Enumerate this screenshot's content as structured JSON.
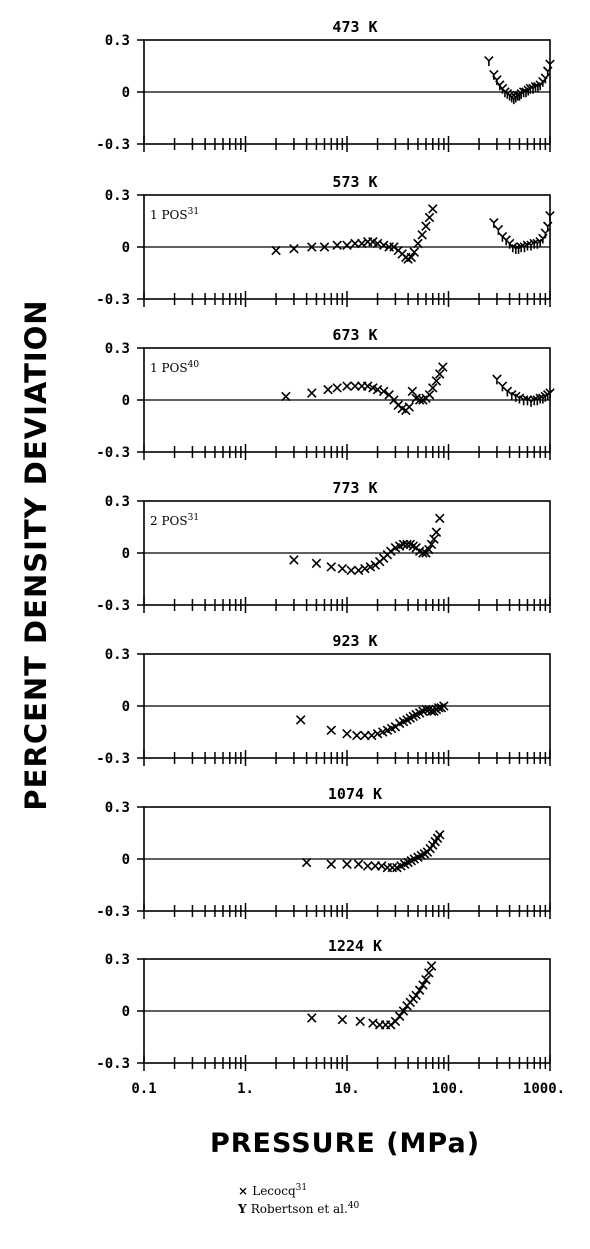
{
  "chart_data": {
    "type": "scatter",
    "ylabel": "PERCENT DENSITY DEVIATION",
    "xlabel": "PRESSURE (MPa)",
    "xscale": "log",
    "xlim": [
      0.1,
      1000
    ],
    "ylim": [
      -0.3,
      0.3
    ],
    "x_tick_labels": [
      "0.1",
      "1.",
      "10.",
      "100.",
      "1000."
    ],
    "y_tick_labels": [
      "0.3",
      "0",
      "-0.3"
    ],
    "legend": [
      {
        "marker": "×",
        "label": "Lecocq",
        "ref": "31"
      },
      {
        "marker": "Y",
        "label": "Robertson et al.",
        "ref": "40"
      }
    ],
    "panels": [
      {
        "title": "473 K",
        "note": null,
        "series": [
          {
            "name": "Lecocq",
            "marker": "x",
            "x": [],
            "y": []
          },
          {
            "name": "Robertson et al.",
            "marker": "y",
            "x": [
              250,
              280,
              300,
              320,
              340,
              360,
              380,
              400,
              420,
              440,
              460,
              480,
              500,
              520,
              550,
              580,
              610,
              640,
              680,
              720,
              760,
              800,
              850,
              900,
              950,
              1000
            ],
            "y": [
              0.18,
              0.1,
              0.07,
              0.04,
              0.02,
              0.0,
              -0.01,
              -0.02,
              -0.03,
              -0.04,
              -0.03,
              -0.02,
              -0.02,
              -0.01,
              0.0,
              0.0,
              0.01,
              0.02,
              0.02,
              0.03,
              0.03,
              0.04,
              0.06,
              0.08,
              0.12,
              0.16
            ]
          }
        ]
      },
      {
        "title": "573 K",
        "note": {
          "text": "1 POS",
          "sup": "31"
        },
        "series": [
          {
            "name": "Lecocq",
            "marker": "x",
            "x": [
              2.0,
              3.0,
              4.5,
              6.0,
              8.0,
              10.0,
              12.0,
              14.0,
              16.0,
              18.0,
              20.0,
              23.0,
              26.0,
              29.0,
              32.0,
              35.0,
              38.0,
              40.0,
              43.0,
              46.0,
              50.0,
              55.0,
              60.0,
              65.0,
              70.0
            ],
            "y": [
              -0.02,
              -0.01,
              0.0,
              0.0,
              0.01,
              0.01,
              0.02,
              0.02,
              0.03,
              0.03,
              0.02,
              0.01,
              0.0,
              0.0,
              -0.02,
              -0.04,
              -0.06,
              -0.07,
              -0.06,
              -0.03,
              0.02,
              0.07,
              0.12,
              0.17,
              0.22
            ]
          },
          {
            "name": "Robertson et al.",
            "marker": "y",
            "x": [
              280,
              310,
              340,
              370,
              400,
              430,
              460,
              490,
              520,
              560,
              600,
              650,
              700,
              750,
              800,
              850,
              900,
              950,
              1000
            ],
            "y": [
              0.14,
              0.1,
              0.06,
              0.04,
              0.02,
              0.0,
              -0.01,
              -0.01,
              0.0,
              0.0,
              0.01,
              0.01,
              0.02,
              0.02,
              0.03,
              0.05,
              0.08,
              0.12,
              0.18
            ]
          }
        ]
      },
      {
        "title": "673 K",
        "note": {
          "text": "1 POS",
          "sup": "40"
        },
        "series": [
          {
            "name": "Lecocq",
            "marker": "x",
            "x": [
              2.5,
              4.5,
              6.5,
              8.0,
              10.0,
              12.0,
              14.0,
              16.0,
              18.0,
              20.0,
              23.0,
              26.0,
              29.0,
              32.0,
              35.0,
              38.0,
              41.0,
              44.0,
              48.0,
              52.0,
              56.0,
              60.0,
              65.0,
              70.0,
              76.0,
              82.0,
              88.0
            ],
            "y": [
              0.02,
              0.04,
              0.06,
              0.07,
              0.08,
              0.08,
              0.08,
              0.08,
              0.07,
              0.06,
              0.05,
              0.03,
              0.0,
              -0.03,
              -0.05,
              -0.06,
              -0.04,
              0.05,
              0.01,
              0.0,
              0.0,
              0.01,
              0.03,
              0.07,
              0.11,
              0.15,
              0.19
            ]
          },
          {
            "name": "Robertson et al.",
            "marker": "y",
            "x": [
              300,
              340,
              380,
              420,
              460,
              500,
              550,
              600,
              650,
              700,
              750,
              800,
              850,
              900,
              950,
              1000
            ],
            "y": [
              0.12,
              0.08,
              0.05,
              0.03,
              0.02,
              0.01,
              0.0,
              0.0,
              -0.01,
              0.0,
              0.0,
              0.01,
              0.01,
              0.02,
              0.03,
              0.04
            ]
          }
        ]
      },
      {
        "title": "773 K",
        "note": {
          "text": "2 POS",
          "sup": "31"
        },
        "series": [
          {
            "name": "Lecocq",
            "marker": "x",
            "x": [
              3.0,
              5.0,
              7.0,
              9.0,
              11.0,
              13.0,
              15.0,
              17.0,
              19.0,
              21.0,
              23.0,
              25.0,
              27.0,
              30.0,
              33.0,
              36.0,
              39.0,
              42.0,
              45.0,
              48.0,
              52.0,
              56.0,
              60.0,
              64.0,
              68.0,
              72.0,
              76.0,
              82.0
            ],
            "y": [
              -0.04,
              -0.06,
              -0.08,
              -0.09,
              -0.1,
              -0.1,
              -0.09,
              -0.08,
              -0.07,
              -0.05,
              -0.03,
              -0.01,
              0.01,
              0.03,
              0.04,
              0.05,
              0.05,
              0.05,
              0.04,
              0.03,
              0.01,
              0.0,
              0.0,
              0.02,
              0.05,
              0.08,
              0.12,
              0.2
            ]
          }
        ]
      },
      {
        "title": "923 K",
        "note": null,
        "series": [
          {
            "name": "Lecocq",
            "marker": "x",
            "x": [
              3.5,
              7.0,
              10.0,
              12.5,
              15.0,
              17.5,
              20.0,
              22.5,
              25.0,
              27.5,
              30.0,
              33.0,
              36.0,
              39.0,
              42.0,
              45.0,
              48.0,
              52.0,
              56.0,
              60.0,
              64.0,
              68.0,
              72.0,
              76.0,
              80.0,
              85.0,
              90.0
            ],
            "y": [
              -0.08,
              -0.14,
              -0.16,
              -0.17,
              -0.17,
              -0.17,
              -0.16,
              -0.15,
              -0.14,
              -0.13,
              -0.12,
              -0.1,
              -0.09,
              -0.08,
              -0.07,
              -0.06,
              -0.05,
              -0.04,
              -0.03,
              -0.02,
              -0.02,
              -0.03,
              -0.03,
              -0.02,
              -0.01,
              -0.01,
              0.0
            ]
          }
        ]
      },
      {
        "title": "1074 K",
        "note": null,
        "series": [
          {
            "name": "Lecocq",
            "marker": "x",
            "x": [
              4.0,
              7.0,
              10.0,
              13.0,
              16.0,
              19.0,
              22.0,
              25.0,
              28.0,
              31.0,
              34.0,
              37.0,
              40.0,
              43.0,
              46.0,
              50.0,
              54.0,
              58.0,
              62.0,
              66.0,
              70.0,
              74.0,
              78.0,
              82.0
            ],
            "y": [
              -0.02,
              -0.03,
              -0.03,
              -0.03,
              -0.04,
              -0.04,
              -0.04,
              -0.05,
              -0.05,
              -0.05,
              -0.04,
              -0.03,
              -0.02,
              -0.01,
              0.0,
              0.01,
              0.02,
              0.03,
              0.04,
              0.06,
              0.08,
              0.1,
              0.12,
              0.14
            ]
          }
        ]
      },
      {
        "title": "1224 K",
        "note": null,
        "series": [
          {
            "name": "Lecocq",
            "marker": "x",
            "x": [
              4.5,
              9.0,
              13.5,
              18.0,
              21.0,
              24.0,
              27.0,
              30.0,
              33.0,
              36.0,
              39.0,
              42.0,
              45.0,
              48.0,
              52.0,
              56.0,
              60.0,
              64.0,
              68.0
            ],
            "y": [
              -0.04,
              -0.05,
              -0.06,
              -0.07,
              -0.08,
              -0.08,
              -0.08,
              -0.06,
              -0.03,
              0.0,
              0.03,
              0.05,
              0.07,
              0.09,
              0.12,
              0.15,
              0.18,
              0.22,
              0.26
            ]
          }
        ]
      }
    ]
  }
}
